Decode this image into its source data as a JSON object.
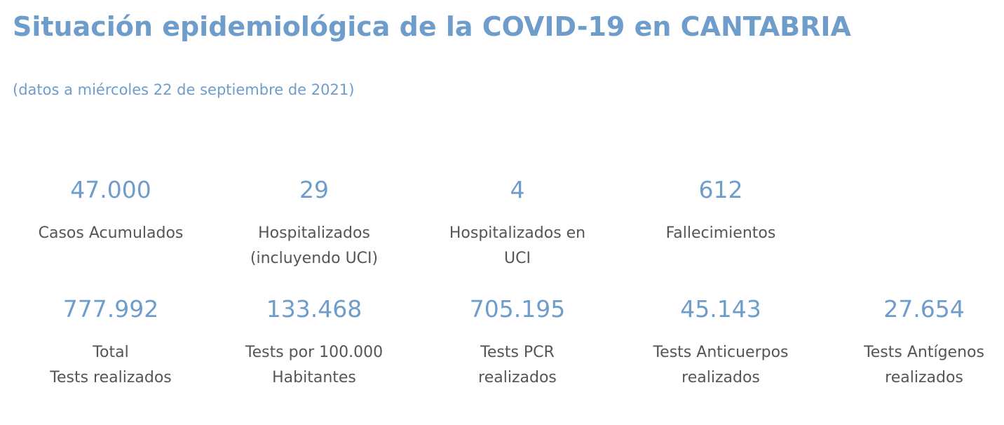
{
  "header": {
    "title": "Situación epidemiológica de la COVID-19 en CANTABRIA",
    "subtitle": "(datos a miércoles 22 de septiembre de 2021)"
  },
  "stats_row1": [
    {
      "value": "47.000",
      "label_lines": [
        "Casos Acumulados"
      ]
    },
    {
      "value": "29",
      "label_lines": [
        "Hospitalizados",
        "(incluyendo UCI)"
      ]
    },
    {
      "value": "4",
      "label_lines": [
        "Hospitalizados en",
        "UCI"
      ]
    },
    {
      "value": "612",
      "label_lines": [
        "Fallecimientos"
      ]
    }
  ],
  "stats_row2": [
    {
      "value": "777.992",
      "label_lines": [
        "Total",
        "Tests realizados"
      ]
    },
    {
      "value": "133.468",
      "label_lines": [
        "Tests por 100.000",
        "Habitantes"
      ]
    },
    {
      "value": "705.195",
      "label_lines": [
        "Tests PCR",
        "realizados"
      ]
    },
    {
      "value": "45.143",
      "label_lines": [
        "Tests Anticuerpos",
        "realizados"
      ]
    },
    {
      "value": "27.654",
      "label_lines": [
        "Tests Antígenos",
        "realizados"
      ]
    }
  ],
  "colors": {
    "accent": "#6e9ccb",
    "label_text": "#555555",
    "background": "#ffffff"
  }
}
